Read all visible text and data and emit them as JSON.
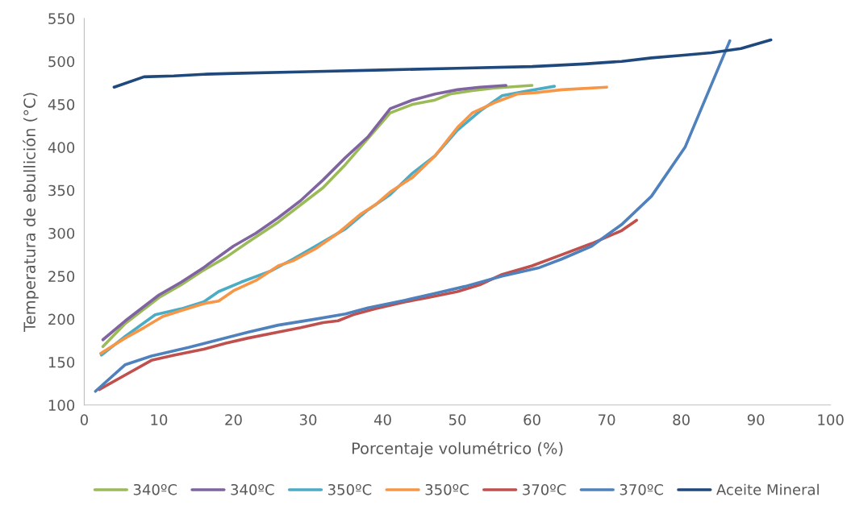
{
  "chart_data": {
    "type": "line",
    "xlabel": "Porcentaje volumétrico (%)",
    "ylabel": "Temperatura de ebullición (°C)",
    "xlim": [
      0,
      100
    ],
    "xticks": [
      0,
      10,
      20,
      30,
      40,
      50,
      60,
      70,
      80,
      90,
      100
    ],
    "ylim": [
      100,
      550
    ],
    "yticks": [
      100,
      150,
      200,
      250,
      300,
      350,
      400,
      450,
      500,
      550
    ],
    "grid": false,
    "legend": "bottom",
    "marker": "none",
    "line_style": "solid",
    "series": [
      {
        "name": "340ºC",
        "color": "#9bbb59",
        "x": [
          2.5,
          5.5,
          10,
          13,
          16,
          19,
          22,
          26,
          29,
          32,
          35,
          38,
          41,
          44,
          47,
          49,
          52,
          55,
          60
        ],
        "values": [
          168,
          195,
          225,
          240,
          257,
          272,
          290,
          313,
          333,
          353,
          380,
          410,
          440,
          450,
          455,
          462,
          466,
          469,
          472
        ]
      },
      {
        "name": "340ºC",
        "color": "#8064a2",
        "x": [
          2.5,
          5.5,
          10,
          13,
          16,
          20,
          23,
          26,
          29,
          32,
          35,
          38,
          41,
          44,
          47,
          50,
          53,
          56.5
        ],
        "values": [
          176,
          198,
          228,
          243,
          260,
          285,
          300,
          318,
          338,
          362,
          388,
          412,
          445,
          455,
          462,
          467,
          470,
          472
        ]
      },
      {
        "name": "350ºC",
        "color": "#4bacc6",
        "x": [
          2.3,
          5.5,
          9.5,
          13,
          16,
          18,
          21,
          25,
          28,
          31,
          35,
          38,
          41,
          44,
          47,
          50,
          53,
          56,
          59,
          63
        ],
        "values": [
          158,
          180,
          205,
          212,
          220,
          232,
          243,
          256,
          270,
          285,
          305,
          327,
          345,
          370,
          390,
          420,
          442,
          460,
          465,
          471
        ]
      },
      {
        "name": "350ºC",
        "color": "#f79646",
        "x": [
          2.2,
          5.5,
          8,
          10.5,
          13,
          16,
          18,
          20,
          23,
          26,
          28,
          31,
          34,
          37,
          39,
          41,
          44,
          47,
          50,
          52,
          55,
          58,
          61,
          64,
          70
        ],
        "values": [
          160,
          178,
          190,
          203,
          210,
          218,
          221,
          233,
          245,
          262,
          268,
          282,
          300,
          322,
          333,
          348,
          365,
          390,
          423,
          440,
          452,
          462,
          464,
          467,
          470
        ]
      },
      {
        "name": "370ºC",
        "color": "#c0504d",
        "x": [
          2,
          5.5,
          9,
          12,
          16,
          19,
          22,
          26,
          29,
          32,
          34,
          36,
          39,
          43,
          46,
          50,
          53,
          56,
          60,
          64,
          68,
          72,
          74
        ],
        "values": [
          118,
          135,
          152,
          158,
          165,
          172,
          178,
          185,
          190,
          196,
          198,
          205,
          212,
          220,
          225,
          232,
          240,
          252,
          262,
          275,
          288,
          303,
          315
        ]
      },
      {
        "name": "370ºC",
        "color": "#4f81bd",
        "x": [
          1.5,
          5.5,
          9,
          14,
          18,
          22,
          26,
          31,
          35,
          38,
          43,
          47,
          51,
          56,
          61,
          64,
          68,
          72,
          76,
          80.5,
          86.5
        ],
        "values": [
          116,
          147,
          157,
          167,
          176,
          185,
          193,
          200,
          206,
          213,
          222,
          230,
          238,
          250,
          260,
          270,
          285,
          310,
          343,
          400,
          524
        ]
      },
      {
        "name": "Aceite Mineral",
        "color": "#1f497d",
        "x": [
          4,
          8,
          12,
          16,
          20,
          30,
          40,
          50,
          60,
          67,
          72,
          76,
          80,
          84,
          88,
          92
        ],
        "values": [
          470,
          482,
          483,
          485,
          486,
          488,
          490,
          492,
          494,
          497,
          500,
          504,
          507,
          510,
          515,
          525
        ]
      }
    ]
  }
}
